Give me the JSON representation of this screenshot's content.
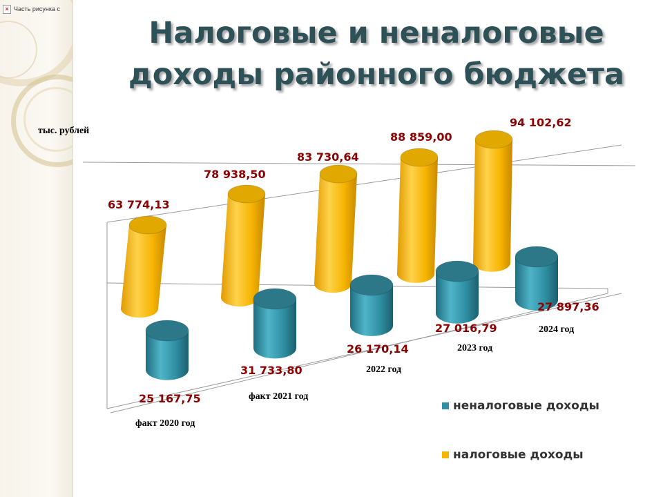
{
  "slide": {
    "title": "Налоговые и неналоговые доходы районного бюджета",
    "broken_image_label": "Часть рисунка с"
  },
  "chart_data": {
    "type": "bar",
    "style": "3d-cylinder",
    "unit_label": "тыс. рублей",
    "categories": [
      "факт 2020 год",
      "факт 2021 год",
      "2022 год",
      "2023 год",
      "2024 год"
    ],
    "series": [
      {
        "name": "налоговые доходы",
        "color": "#f5b400",
        "values": [
          63774.13,
          78938.5,
          83730.64,
          88859.0,
          94102.62
        ],
        "labels": [
          "63 774,13",
          "78 938,50",
          "83 730,64",
          "88 859,00",
          "94 102,62"
        ]
      },
      {
        "name": "неналоговые доходы",
        "color": "#2f8fa3",
        "values": [
          25167.75,
          31733.8,
          26170.14,
          27016.79,
          27897.36
        ],
        "labels": [
          "25 167,75",
          "31 733,80",
          "26 170,14",
          "27 016,79",
          "27 897,36"
        ]
      }
    ],
    "data_label_color": "#8b0000",
    "legend_position": "bottom-right"
  }
}
